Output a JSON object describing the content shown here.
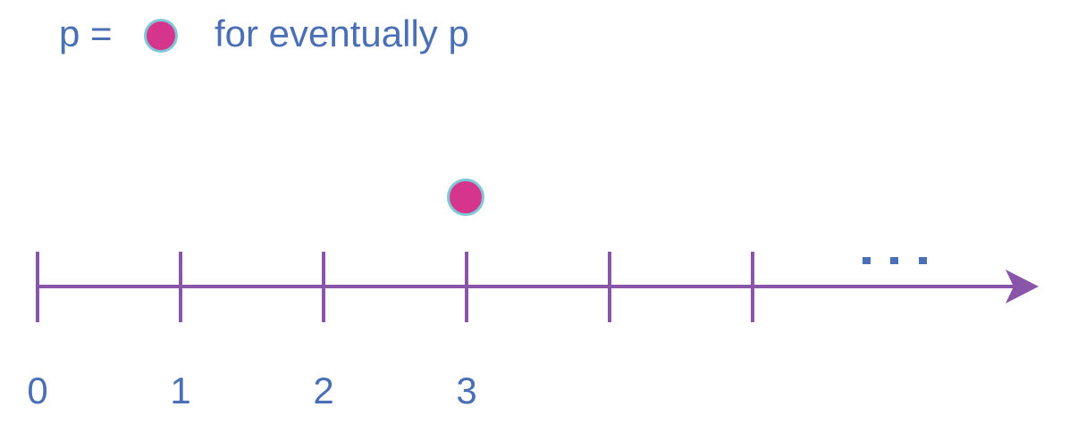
{
  "legend": {
    "symbol_text": "p = ",
    "description": "for eventually p",
    "marker_icon": "filled-circle-marker"
  },
  "timeline": {
    "tick_labels": [
      "0",
      "1",
      "2",
      "3"
    ],
    "tick_count": 6,
    "event_at": 3,
    "continuation": "..."
  },
  "colors": {
    "text": "#4a6fb5",
    "axis": "#8855a8",
    "marker_fill": "#d6358e",
    "marker_outline": "#7fc8d6"
  }
}
